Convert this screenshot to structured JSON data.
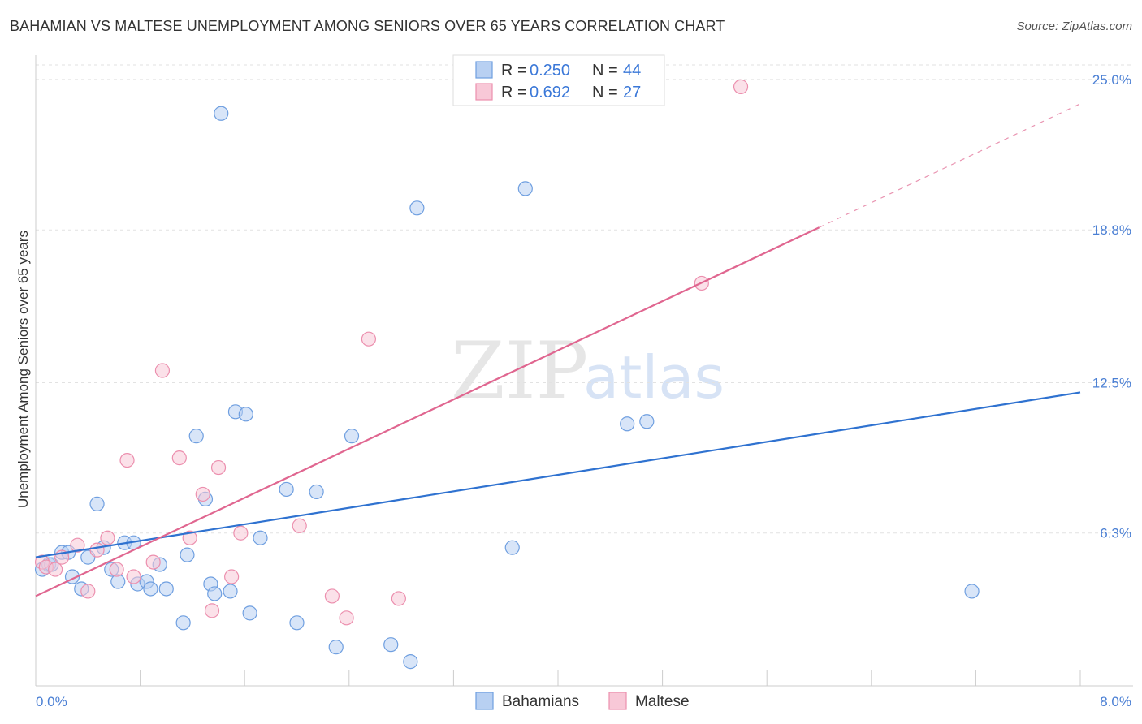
{
  "chart_data": {
    "type": "scatter",
    "title": "BAHAMIAN VS MALTESE UNEMPLOYMENT AMONG SENIORS OVER 65 YEARS CORRELATION CHART",
    "source": "Source: ZipAtlas.com",
    "xlabel": "",
    "ylabel": "Unemployment Among Seniors over 65 years",
    "xlim": [
      0.0,
      8.0
    ],
    "ylim": [
      0.0,
      25.6
    ],
    "x_tick_labels": {
      "min": "0.0%",
      "max": "8.0%"
    },
    "y_ticks": [
      6.3,
      12.5,
      18.8,
      25.0
    ],
    "y_tick_labels": [
      "6.3%",
      "12.5%",
      "18.8%",
      "25.0%"
    ],
    "watermark": {
      "part1": "ZIP",
      "part2": "atlas"
    },
    "legend": {
      "r_label": "R =",
      "n_label": "N =",
      "entries": [
        {
          "r": "0.250",
          "n": "44"
        },
        {
          "r": "0.692",
          "n": "27"
        }
      ]
    },
    "series": [
      {
        "name": "Bahamians",
        "color": "#6f9fe0",
        "fill": "#b8d0f2",
        "line_color": "#2f72d0",
        "trend": {
          "x0": 0.0,
          "y0": 5.3,
          "x1": 8.0,
          "y1": 12.1
        },
        "points": [
          [
            0.05,
            4.8
          ],
          [
            0.1,
            5.0
          ],
          [
            0.12,
            5.0
          ],
          [
            0.2,
            5.5
          ],
          [
            0.25,
            5.5
          ],
          [
            0.28,
            4.5
          ],
          [
            0.35,
            4.0
          ],
          [
            0.4,
            5.3
          ],
          [
            0.47,
            7.5
          ],
          [
            0.52,
            5.7
          ],
          [
            0.58,
            4.8
          ],
          [
            0.63,
            4.3
          ],
          [
            0.68,
            5.9
          ],
          [
            0.75,
            5.9
          ],
          [
            0.78,
            4.2
          ],
          [
            0.85,
            4.3
          ],
          [
            0.88,
            4.0
          ],
          [
            0.95,
            5.0
          ],
          [
            1.0,
            4.0
          ],
          [
            1.13,
            2.6
          ],
          [
            1.16,
            5.4
          ],
          [
            1.23,
            10.3
          ],
          [
            1.3,
            7.7
          ],
          [
            1.34,
            4.2
          ],
          [
            1.37,
            3.8
          ],
          [
            1.42,
            23.6
          ],
          [
            1.49,
            3.9
          ],
          [
            1.53,
            11.3
          ],
          [
            1.61,
            11.2
          ],
          [
            1.64,
            3.0
          ],
          [
            1.72,
            6.1
          ],
          [
            1.92,
            8.1
          ],
          [
            2.0,
            2.6
          ],
          [
            2.15,
            8.0
          ],
          [
            2.3,
            1.6
          ],
          [
            2.42,
            10.3
          ],
          [
            2.72,
            1.7
          ],
          [
            2.87,
            1.0
          ],
          [
            2.92,
            19.7
          ],
          [
            3.65,
            5.7
          ],
          [
            3.75,
            20.5
          ],
          [
            4.53,
            10.8
          ],
          [
            4.68,
            10.9
          ],
          [
            7.17,
            3.9
          ]
        ]
      },
      {
        "name": "Maltese",
        "color": "#ec8fae",
        "fill": "#f8c8d7",
        "line_color": "#e06690",
        "trend": {
          "x0": 0.0,
          "y0": 3.7,
          "x1": 6.0,
          "y1": 18.9
        },
        "trend_dashed_to": {
          "x": 8.0,
          "y": 24.0
        },
        "points": [
          [
            0.05,
            5.1
          ],
          [
            0.08,
            4.9
          ],
          [
            0.15,
            4.8
          ],
          [
            0.2,
            5.3
          ],
          [
            0.32,
            5.8
          ],
          [
            0.4,
            3.9
          ],
          [
            0.47,
            5.6
          ],
          [
            0.55,
            6.1
          ],
          [
            0.62,
            4.8
          ],
          [
            0.7,
            9.3
          ],
          [
            0.75,
            4.5
          ],
          [
            0.9,
            5.1
          ],
          [
            0.97,
            13.0
          ],
          [
            1.1,
            9.4
          ],
          [
            1.18,
            6.1
          ],
          [
            1.28,
            7.9
          ],
          [
            1.35,
            3.1
          ],
          [
            1.4,
            9.0
          ],
          [
            1.5,
            4.5
          ],
          [
            1.57,
            6.3
          ],
          [
            2.02,
            6.6
          ],
          [
            2.27,
            3.7
          ],
          [
            2.38,
            2.8
          ],
          [
            2.55,
            14.3
          ],
          [
            2.78,
            3.6
          ],
          [
            5.1,
            16.6
          ],
          [
            5.4,
            24.7
          ]
        ]
      }
    ]
  }
}
